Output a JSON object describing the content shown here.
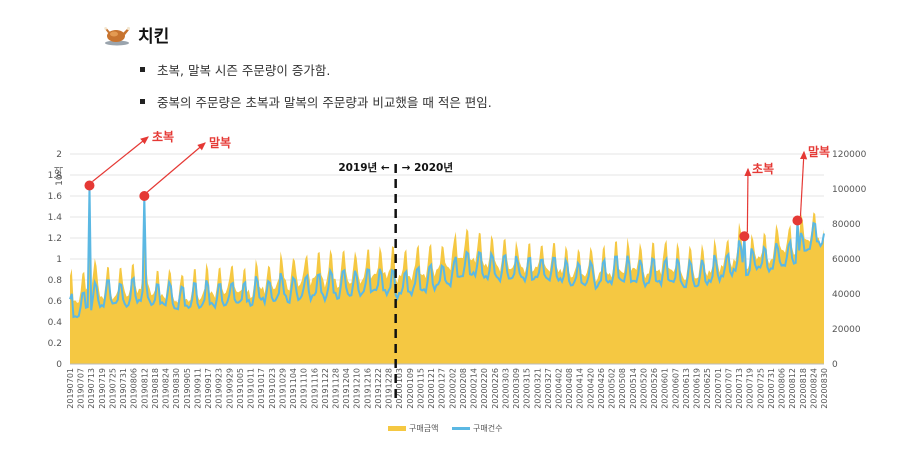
{
  "header": {
    "title": "치킨",
    "icon": "roast-chicken-icon"
  },
  "bullets": [
    "초복, 말복 시즌 주문량이 증가함.",
    "중복의 주문량은 초복과 말복의 주문량과 비교했을 때 적은 편임."
  ],
  "chart_data": {
    "type": "area+line",
    "ylabel_left": "10억",
    "ylim_left": [
      0,
      2
    ],
    "left_ticks": [
      "0",
      "0.2",
      "0.4",
      "0.6",
      "0.8",
      "1",
      "1.2",
      "1.4",
      "1.6",
      "1.8",
      "2"
    ],
    "ylim_right": [
      0,
      120000
    ],
    "right_ticks": [
      "0",
      "20000",
      "40000",
      "60000",
      "80000",
      "100000",
      "120000"
    ],
    "x_tick_labels": [
      "20190701",
      "20190707",
      "20190713",
      "20190719",
      "20190725",
      "20190731",
      "20190806",
      "20190812",
      "20190818",
      "20190824",
      "20190830",
      "20190905",
      "20190911",
      "20190917",
      "20190923",
      "20190929",
      "20191005",
      "20191011",
      "20191017",
      "20191023",
      "20191029",
      "20191104",
      "20191110",
      "20191116",
      "20191122",
      "20191128",
      "20191204",
      "20191210",
      "20191216",
      "20191222",
      "20191228",
      "20200103",
      "20200109",
      "20200115",
      "20200121",
      "20200127",
      "20200202",
      "20200208",
      "20200214",
      "20200220",
      "20200226",
      "20200303",
      "20200309",
      "20200315",
      "20200321",
      "20200327",
      "20200402",
      "20200408",
      "20200414",
      "20200420",
      "20200426",
      "20200502",
      "20200508",
      "20200514",
      "20200520",
      "20200526",
      "20200601",
      "20200607",
      "20200613",
      "20200619",
      "20200625",
      "20200701",
      "20200707",
      "20200713",
      "20200719",
      "20200725",
      "20200731",
      "20200806",
      "20200812",
      "20200818",
      "20200824",
      "20200830"
    ],
    "series": [
      {
        "name": "구매금액",
        "axis": "left",
        "color": "#f5c842",
        "weekly_base": [
          0.68,
          0.66,
          0.8,
          0.7,
          0.72,
          0.74,
          0.72,
          0.8,
          0.72,
          0.7,
          0.7,
          0.68,
          0.72,
          0.74,
          0.74,
          0.76,
          0.72,
          0.74,
          0.76,
          0.78,
          0.82,
          0.82,
          0.84,
          0.86,
          0.84,
          0.84,
          0.86,
          0.86,
          0.88,
          0.9,
          0.9,
          0.88,
          0.9,
          0.92,
          0.92,
          0.94,
          1.0,
          1.1,
          1.05,
          1.02,
          1.0,
          0.98,
          0.95,
          0.95,
          0.95,
          0.98,
          0.95,
          0.92,
          0.9,
          0.9,
          0.9,
          0.92,
          0.95,
          0.95,
          0.9,
          0.92,
          0.95,
          0.92,
          0.9,
          0.9,
          0.92,
          0.98,
          0.96,
          1.1,
          0.98,
          1.08,
          1.05,
          1.15,
          1.1,
          1.2,
          1.25,
          1.25
        ],
        "weekly_amp": 0.3
      },
      {
        "name": "구매건수",
        "axis": "right",
        "color": "#5bb8e3",
        "weekly_base": [
          30000,
          32000,
          36000,
          37000,
          40000,
          37000,
          39000,
          40000,
          38000,
          38000,
          37000,
          37000,
          38000,
          38000,
          38000,
          38000,
          38000,
          39000,
          40000,
          40000,
          41000,
          41000,
          42000,
          42000,
          42000,
          43000,
          44000,
          44000,
          45000,
          45000,
          44000,
          43000,
          45000,
          46000,
          47000,
          48000,
          50000,
          55000,
          55000,
          54000,
          53000,
          53000,
          52000,
          52000,
          52000,
          53000,
          52000,
          50000,
          49000,
          49000,
          49000,
          51000,
          52000,
          50000,
          49000,
          50000,
          50000,
          50000,
          49000,
          49000,
          50000,
          53000,
          53000,
          60000,
          55000,
          59000,
          58000,
          60000,
          61000,
          65000,
          72000,
          74000
        ],
        "weekly_amp": 14000,
        "spikes": [
          {
            "x": "20190712",
            "value": 102000
          },
          {
            "x": "20190812",
            "value": 96000
          },
          {
            "x": "20200716",
            "value": 73000
          },
          {
            "x": "20200815",
            "value": 82000
          }
        ]
      }
    ],
    "legend": [
      "구매금액",
      "구매건수"
    ],
    "legend_position": "bottom",
    "divider_label_left": "2019년 ←",
    "divider_label_right": "→ 2020년",
    "annotations": [
      "초복",
      "말복",
      "초복",
      "말복"
    ]
  }
}
